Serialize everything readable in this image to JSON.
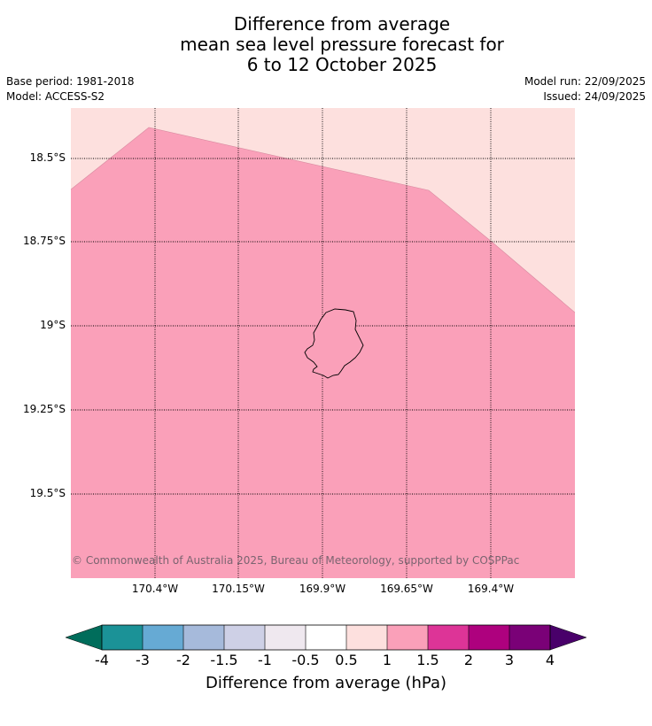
{
  "title_lines": [
    "Difference from average",
    "mean sea level pressure forecast for",
    "6 to 12 October 2025"
  ],
  "meta_left": {
    "base_period": "Base period: 1981-2018",
    "model": "Model: ACCESS-S2"
  },
  "meta_right": {
    "model_run": "Model run: 22/09/2025",
    "issued": "Issued: 24/09/2025"
  },
  "map": {
    "lat_ticks": [
      "18.5°S",
      "18.75°S",
      "19°S",
      "19.25°S",
      "19.5°S"
    ],
    "lon_ticks": [
      "170.4°W",
      "170.15°W",
      "169.9°W",
      "169.65°W",
      "169.4°W"
    ],
    "copyright": "© Commonwealth of Australia 2025, Bureau of Meteorology, supported by COSPPac",
    "colors": {
      "band_1_to_1_5": "#faa0b9",
      "band_0_5_to_1": "#fde0de",
      "coastline": "#000000",
      "grid": "#000000"
    }
  },
  "colorbar": {
    "title": "Difference from average (hPa)",
    "labels": [
      "-4",
      "-3",
      "-2",
      "-1.5",
      "-1",
      "-0.5",
      "0.5",
      "1",
      "1.5",
      "2",
      "3",
      "4"
    ],
    "colors": [
      "#1b9297",
      "#66aad4",
      "#a6badb",
      "#ced0e6",
      "#efe8ef",
      "#ffffff",
      "#fde0de",
      "#faa0b9",
      "#dd3497",
      "#ae017e",
      "#7a0177"
    ],
    "under_color": "#006d5b",
    "over_color": "#49006a"
  }
}
